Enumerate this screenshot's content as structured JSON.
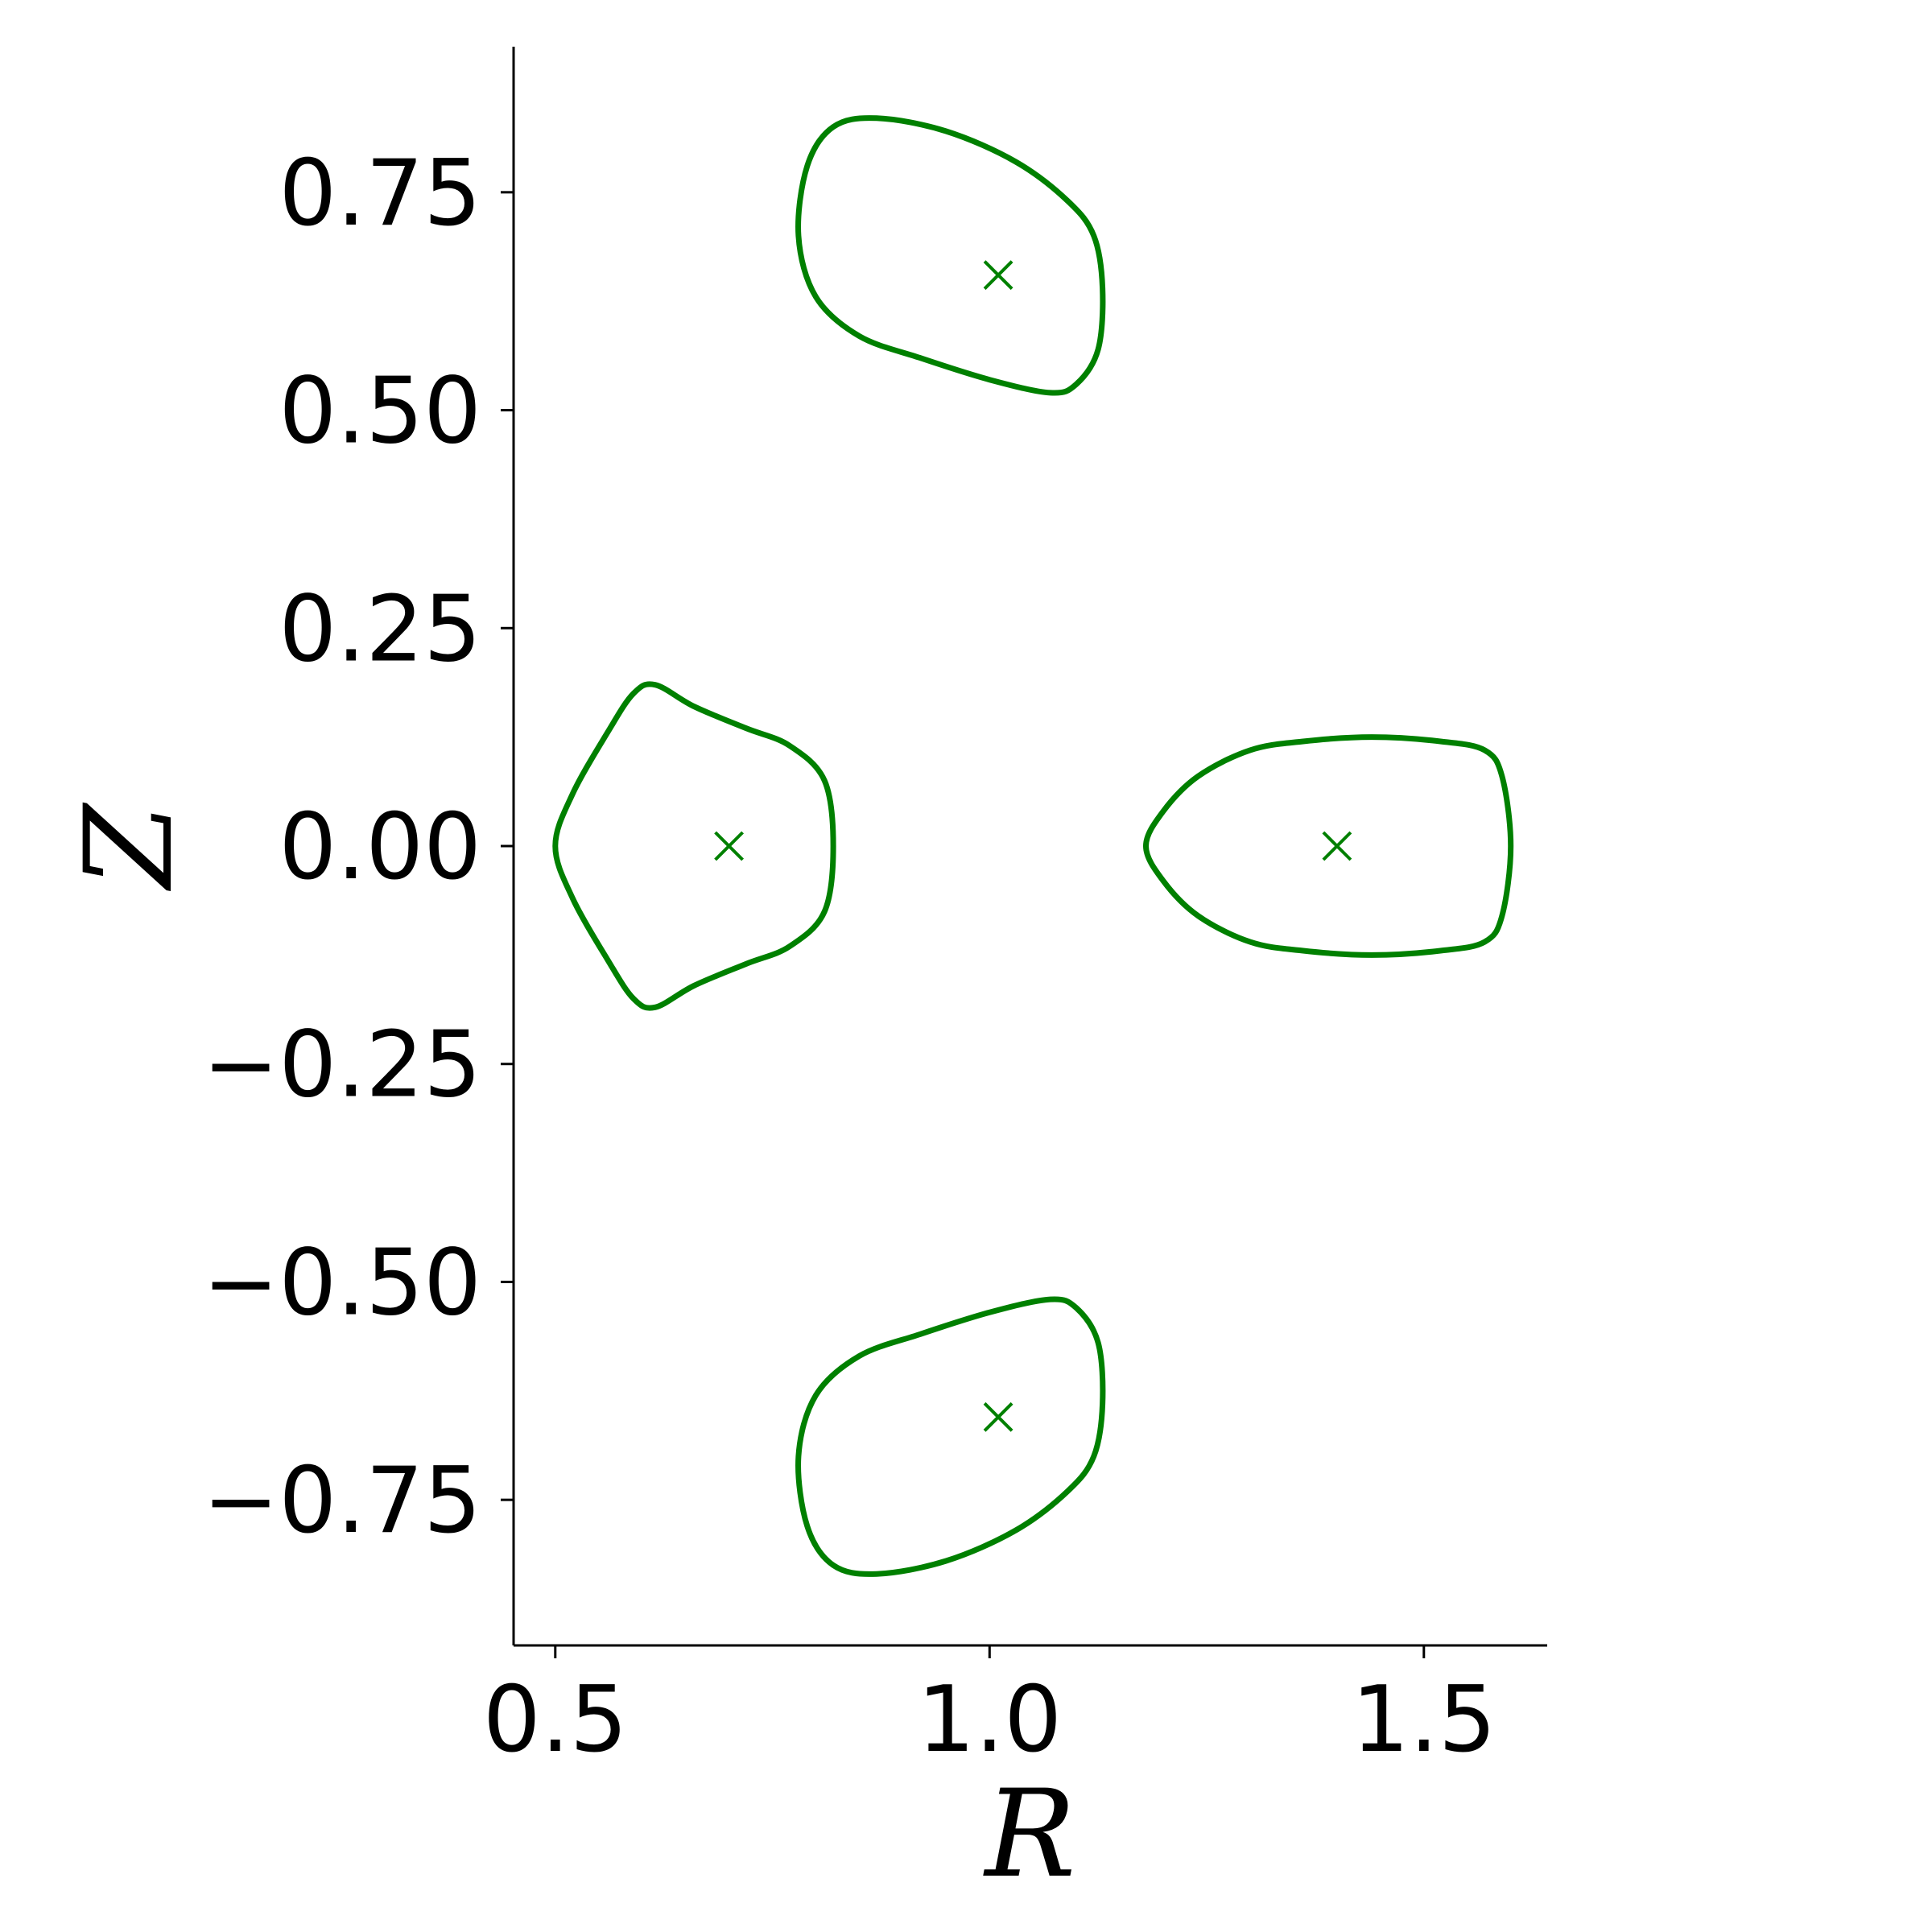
{
  "chart_data": {
    "type": "scatter",
    "title": "",
    "xlabel": "R",
    "ylabel": "Z",
    "xlim": [
      0.452,
      1.642
    ],
    "ylim": [
      -0.917,
      0.917
    ],
    "xticks": [
      0.5,
      1.0,
      1.5
    ],
    "xtick_labels": [
      "0.5",
      "1.0",
      "1.5"
    ],
    "yticks": [
      0.75,
      0.5,
      0.25,
      0.0,
      -0.25,
      -0.5,
      -0.75
    ],
    "ytick_labels": [
      "0.75",
      "0.50",
      "0.25",
      "0.00",
      "−0.25",
      "−0.50",
      "−0.75"
    ],
    "grid": false,
    "legend": "none",
    "spines": [
      "left",
      "bottom"
    ],
    "color": "#008000",
    "series": [
      {
        "kind": "closed-curve",
        "points": [
          [
            1.18,
            0.0
          ],
          [
            1.2,
            0.04
          ],
          [
            1.24,
            0.08
          ],
          [
            1.3,
            0.11
          ],
          [
            1.36,
            0.12
          ],
          [
            1.44,
            0.125
          ],
          [
            1.52,
            0.12
          ],
          [
            1.57,
            0.11
          ],
          [
            1.59,
            0.08
          ],
          [
            1.6,
            0.0
          ],
          [
            1.59,
            -0.08
          ],
          [
            1.57,
            -0.11
          ],
          [
            1.52,
            -0.12
          ],
          [
            1.44,
            -0.125
          ],
          [
            1.36,
            -0.12
          ],
          [
            1.3,
            -0.11
          ],
          [
            1.24,
            -0.08
          ],
          [
            1.2,
            -0.04
          ]
        ]
      },
      {
        "kind": "closed-curve",
        "points": [
          [
            0.5,
            0.0
          ],
          [
            0.52,
            0.06
          ],
          [
            0.56,
            0.13
          ],
          [
            0.59,
            0.175
          ],
          [
            0.615,
            0.185
          ],
          [
            0.66,
            0.16
          ],
          [
            0.72,
            0.135
          ],
          [
            0.77,
            0.115
          ],
          [
            0.81,
            0.075
          ],
          [
            0.82,
            0.0
          ],
          [
            0.81,
            -0.075
          ],
          [
            0.77,
            -0.115
          ],
          [
            0.72,
            -0.135
          ],
          [
            0.66,
            -0.16
          ],
          [
            0.615,
            -0.185
          ],
          [
            0.59,
            -0.175
          ],
          [
            0.56,
            -0.13
          ],
          [
            0.52,
            -0.06
          ]
        ]
      },
      {
        "kind": "closed-curve",
        "points": [
          [
            0.87,
            0.835
          ],
          [
            0.95,
            0.82
          ],
          [
            1.03,
            0.785
          ],
          [
            1.09,
            0.74
          ],
          [
            1.12,
            0.7
          ],
          [
            1.13,
            0.64
          ],
          [
            1.125,
            0.57
          ],
          [
            1.1,
            0.53
          ],
          [
            1.07,
            0.52
          ],
          [
            1.0,
            0.535
          ],
          [
            0.92,
            0.56
          ],
          [
            0.85,
            0.585
          ],
          [
            0.8,
            0.63
          ],
          [
            0.78,
            0.7
          ],
          [
            0.79,
            0.78
          ],
          [
            0.82,
            0.825
          ]
        ]
      },
      {
        "kind": "closed-curve",
        "points": [
          [
            0.87,
            -0.835
          ],
          [
            0.95,
            -0.82
          ],
          [
            1.03,
            -0.785
          ],
          [
            1.09,
            -0.74
          ],
          [
            1.12,
            -0.7
          ],
          [
            1.13,
            -0.64
          ],
          [
            1.125,
            -0.57
          ],
          [
            1.1,
            -0.53
          ],
          [
            1.07,
            -0.52
          ],
          [
            1.0,
            -0.535
          ],
          [
            0.92,
            -0.56
          ],
          [
            0.85,
            -0.585
          ],
          [
            0.8,
            -0.63
          ],
          [
            0.78,
            -0.7
          ],
          [
            0.79,
            -0.78
          ],
          [
            0.82,
            -0.825
          ]
        ]
      },
      {
        "kind": "markers",
        "marker": "x",
        "points": [
          [
            1.4,
            0.0
          ],
          [
            0.7,
            0.0
          ],
          [
            1.01,
            0.655
          ],
          [
            1.01,
            -0.655
          ]
        ]
      }
    ]
  }
}
